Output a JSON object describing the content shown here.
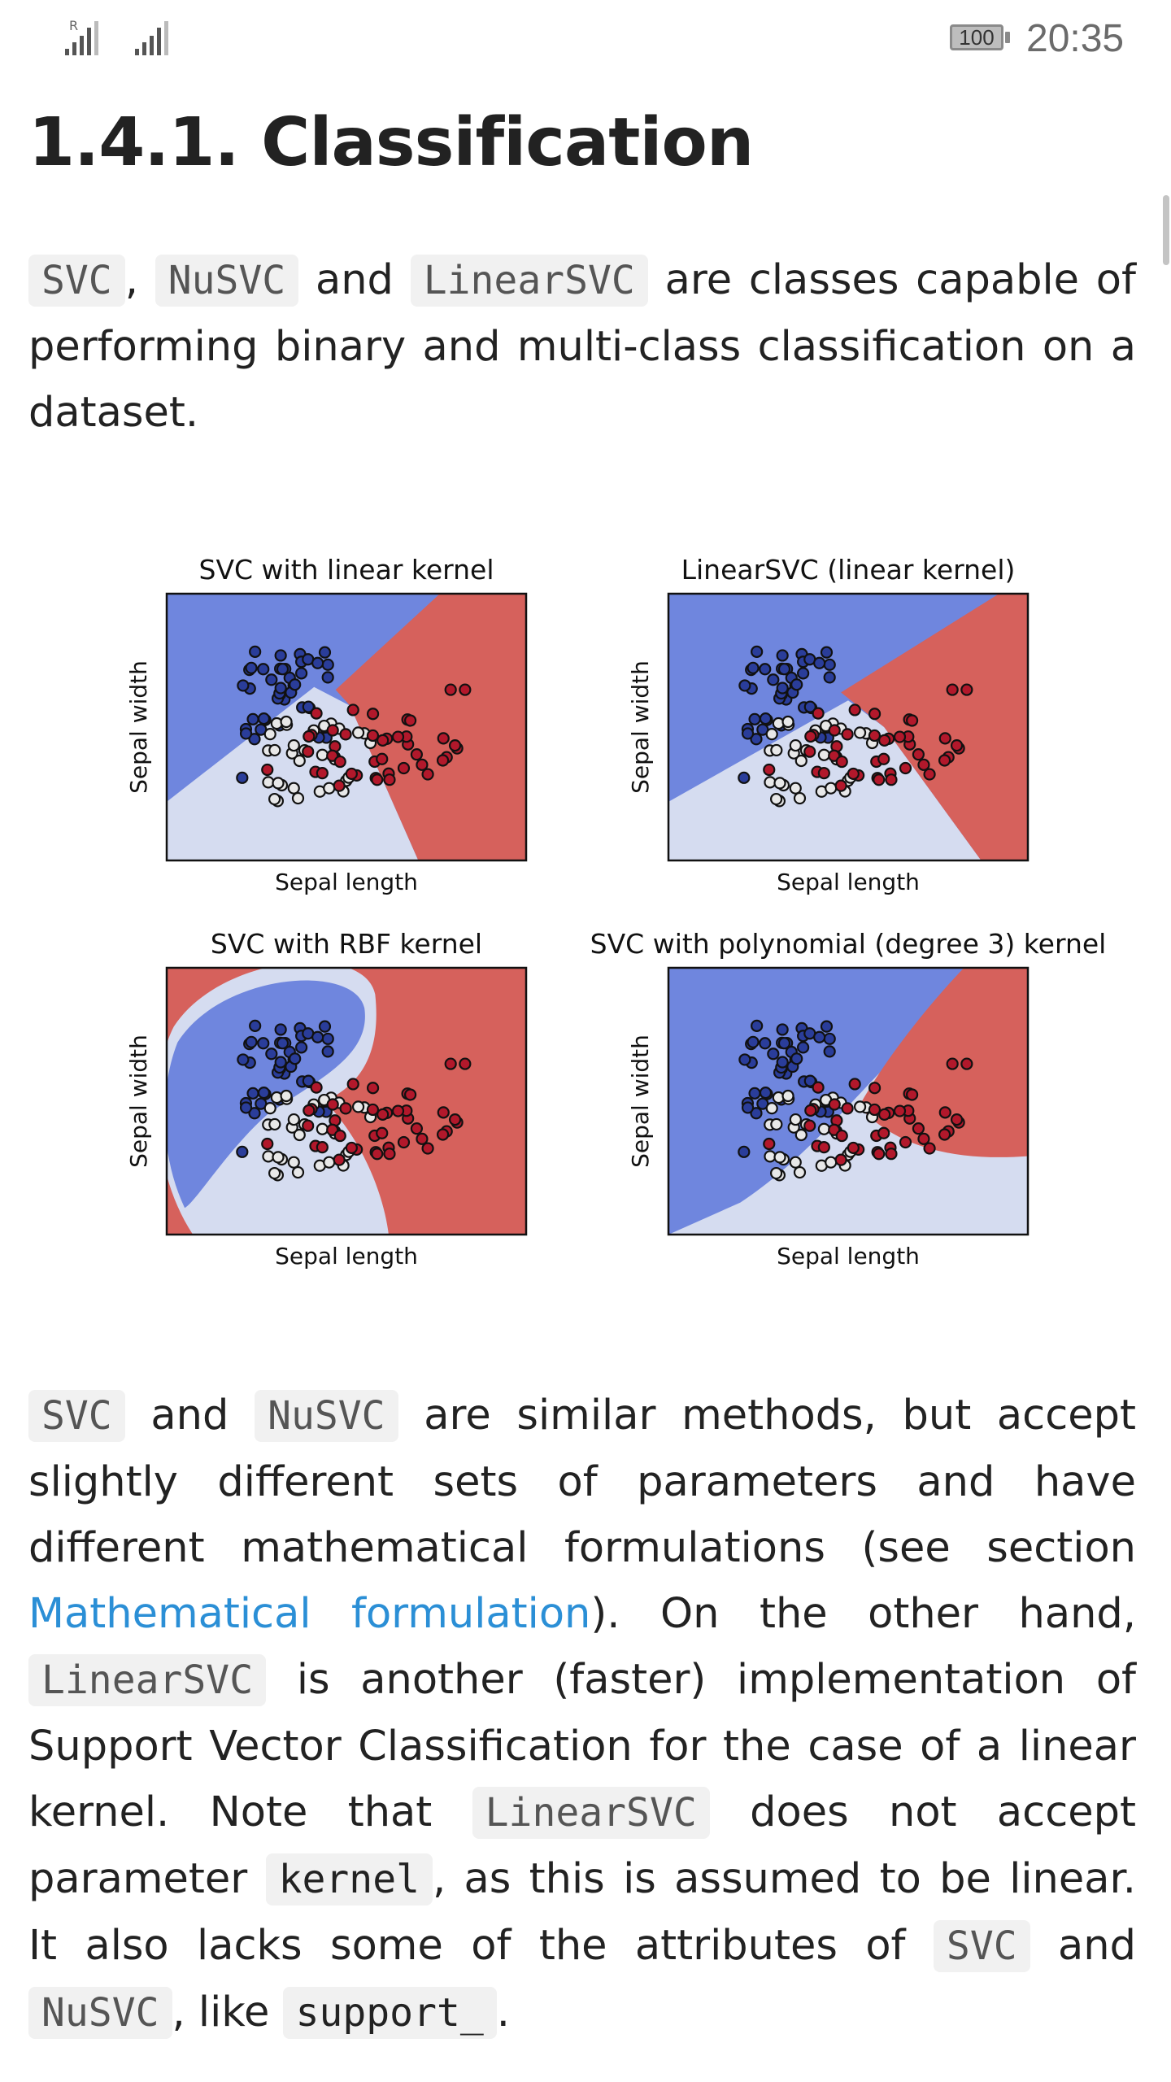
{
  "status_bar": {
    "roaming_indicator": "R",
    "battery": "100",
    "time": "20:35"
  },
  "page": {
    "title": "1.4.1. Classification"
  },
  "intro": {
    "code_svc": "SVC",
    "sep_comma": ",",
    "code_nusvc": "NuSVC",
    "and": "and",
    "code_linearsvc": "LinearSVC",
    "rest": "are classes capable of performing binary and multi-class classification on a dataset."
  },
  "figure": {
    "plots": [
      {
        "title": "SVC with linear kernel",
        "xlabel": "Sepal length",
        "ylabel": "Sepal width"
      },
      {
        "title": "LinearSVC (linear kernel)",
        "xlabel": "Sepal length",
        "ylabel": "Sepal width"
      },
      {
        "title": "SVC with RBF kernel",
        "xlabel": "Sepal length",
        "ylabel": "Sepal width"
      },
      {
        "title": "SVC with polynomial (degree 3) kernel",
        "xlabel": "Sepal length",
        "ylabel": "Sepal width"
      }
    ],
    "colors": {
      "class0": "#6f86de",
      "class1": "#d5dcf0",
      "class2": "#d6615c"
    }
  },
  "para2": {
    "code_svc": "SVC",
    "t1": "and",
    "code_nusvc": "NuSVC",
    "t2": "are similar methods, but accept slightly different sets of parameters and have different mathematical formulations (see section",
    "link": "Mathematical formulation",
    "t3": "). On the other hand,",
    "code_linearsvc": "LinearSVC",
    "t4": "is another (faster) implementation of Support Vector Classification for the case of a linear kernel. Note that",
    "code_linearsvc2": "LinearSVC",
    "t5": "does not accept parameter",
    "code_kernel": "kernel",
    "t6": ", as this is assumed to be linear. It also lacks some of the attributes of",
    "code_svc2": "SVC",
    "t7": "and",
    "code_nusvc2": "NuSVC",
    "t8": ", like",
    "code_support": "support_",
    "t9": "."
  }
}
